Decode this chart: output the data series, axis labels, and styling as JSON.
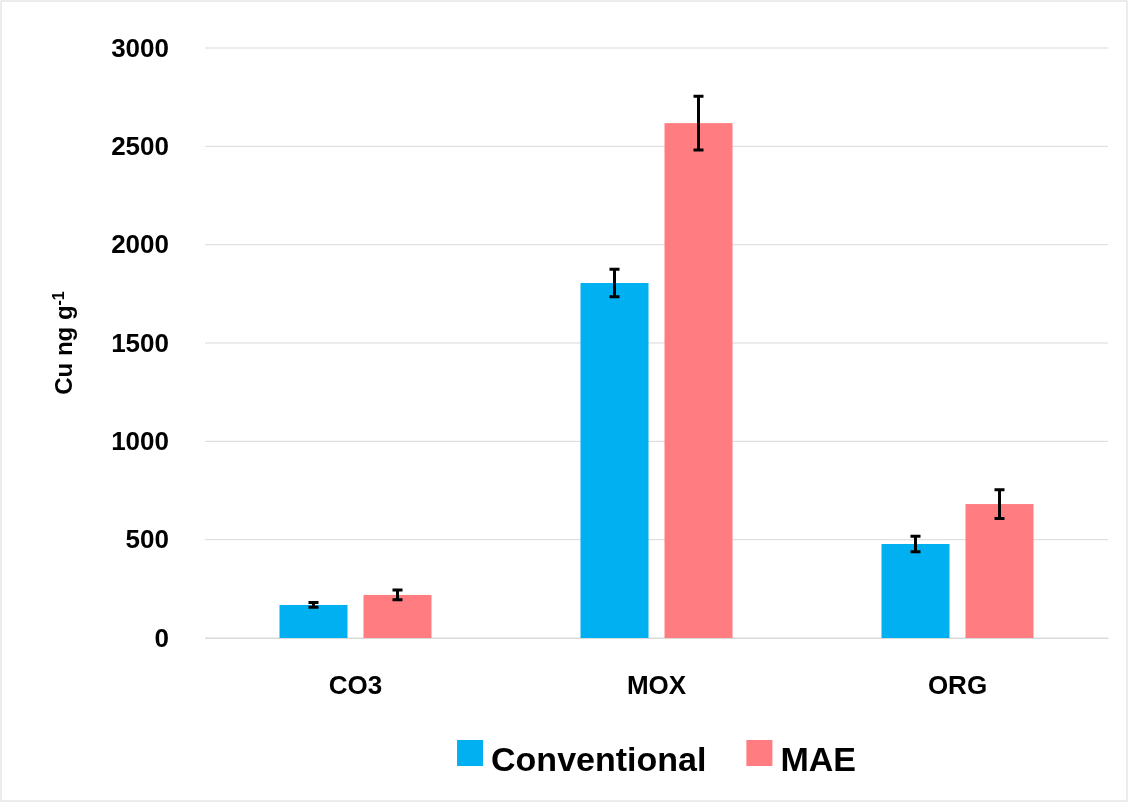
{
  "chart_data": {
    "type": "bar",
    "ylabel": "Cu ng g$^{-1}$",
    "categories": [
      "CO3",
      "MOX",
      "ORG"
    ],
    "series": [
      {
        "name": "Conventional",
        "color": "#00b0f0",
        "values": [
          168,
          1805,
          478
        ],
        "errors": [
          12,
          70,
          40
        ]
      },
      {
        "name": "MAE",
        "color": "#ff7c80",
        "values": [
          219,
          2618,
          681
        ],
        "errors": [
          25,
          137,
          73
        ]
      }
    ],
    "ylim": [
      0,
      3000
    ],
    "yticks": [
      0,
      500,
      1000,
      1500,
      2000,
      2500,
      3000
    ],
    "grid": "y",
    "legend": "bottom"
  }
}
